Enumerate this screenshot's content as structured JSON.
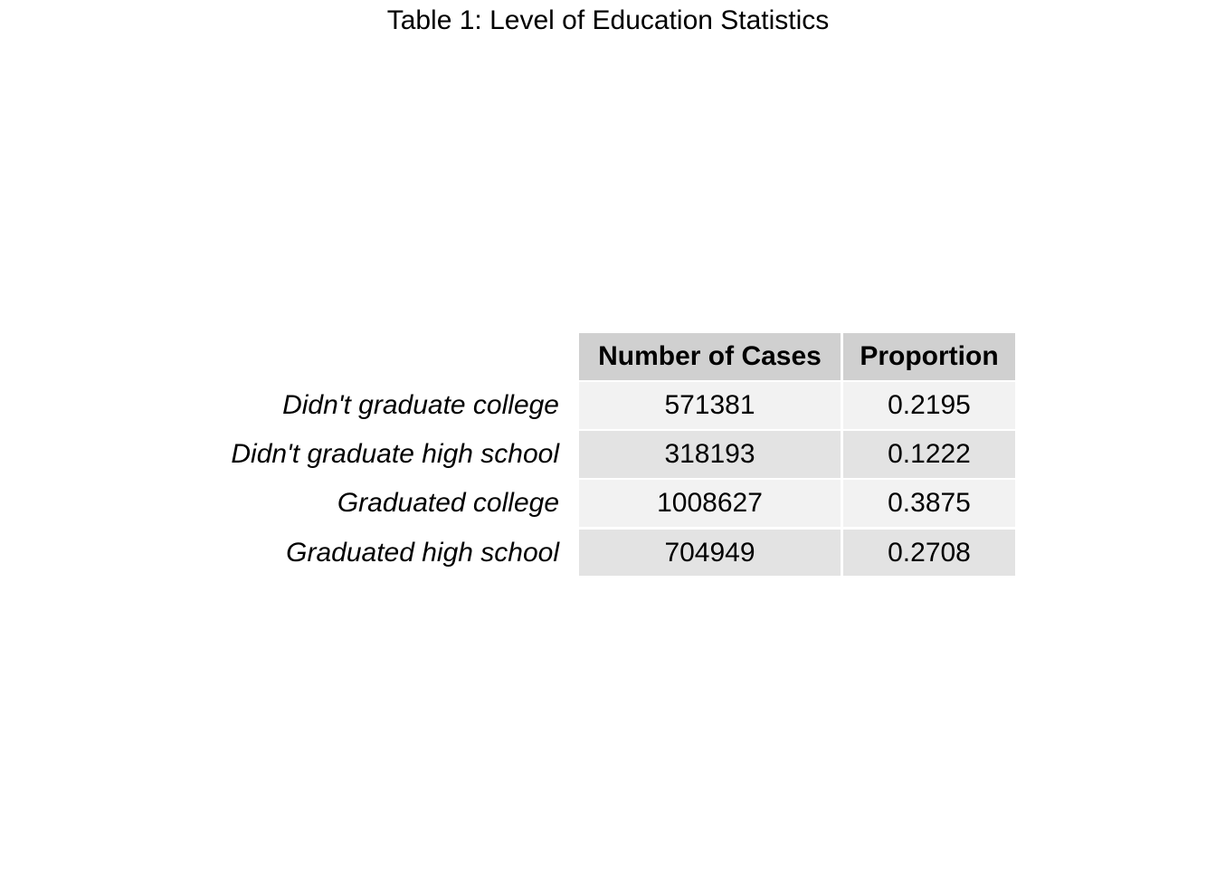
{
  "chart_data": {
    "type": "table",
    "title": "Table 1: Level of Education Statistics",
    "columns": [
      "Number of Cases",
      "Proportion"
    ],
    "rows": [
      {
        "label": "Didn't graduate college",
        "cases": "571381",
        "proportion": "0.2195"
      },
      {
        "label": "Didn't graduate high school",
        "cases": "318193",
        "proportion": "0.1222"
      },
      {
        "label": "Graduated college",
        "cases": "1008627",
        "proportion": "0.3875"
      },
      {
        "label": "Graduated high school",
        "cases": "704949",
        "proportion": "0.2708"
      }
    ],
    "colors": {
      "header_bg": "#d0d0d0",
      "row_odd_bg": "#f2f2f2",
      "row_even_bg": "#e3e3e3"
    }
  }
}
